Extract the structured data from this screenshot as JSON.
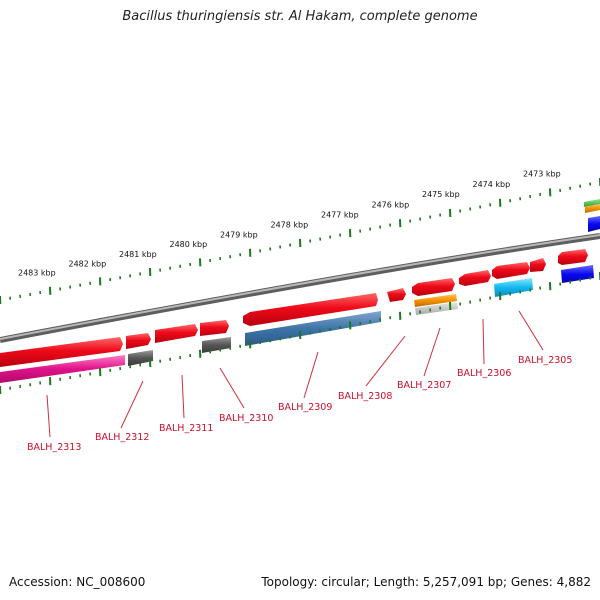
{
  "title": "Bacillus thuringiensis str. Al Hakam, complete genome",
  "footer": {
    "accession": "Accession: NC_008600",
    "stats": "Topology: circular; Length: 5,257,091 bp; Genes: 4,882"
  },
  "colors": {
    "forward_gene": "#e8001c",
    "backbone": "#8a8a8a",
    "ticks": "#1a7a1a",
    "label_text": "#c8102e",
    "leader_line": "#d0303a"
  },
  "scale": {
    "labels": [
      "2483 kbp",
      "2482 kbp",
      "2481 kbp",
      "2480 kbp",
      "2479 kbp",
      "2478 kbp",
      "2477 kbp",
      "2476 kbp",
      "2475 kbp",
      "2474 kbp",
      "2473 kbp"
    ]
  },
  "genes": {
    "labels": [
      "BALH_2313",
      "BALH_2312",
      "BALH_2311",
      "BALH_2310",
      "BALH_2309",
      "BALH_2308",
      "BALH_2307",
      "BALH_2306",
      "BALH_2305"
    ]
  }
}
